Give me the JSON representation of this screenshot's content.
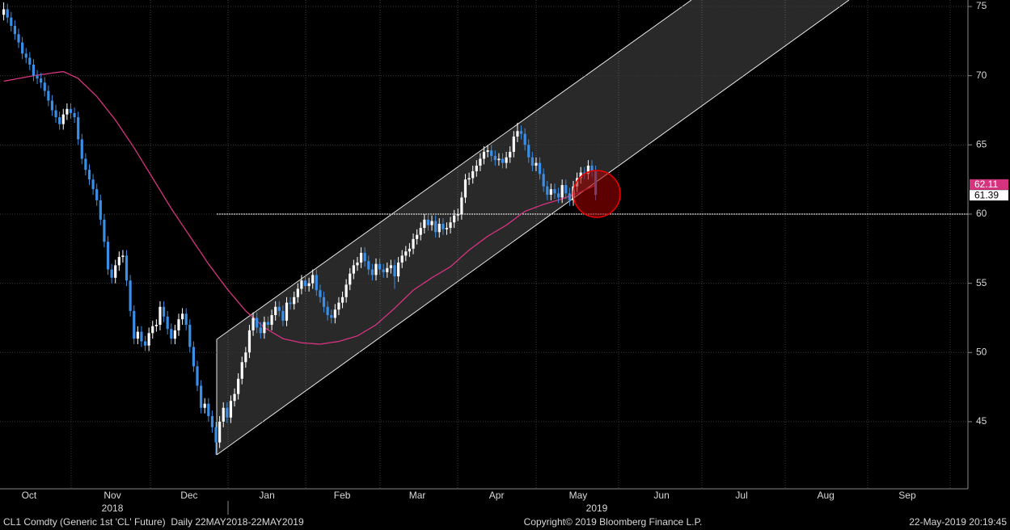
{
  "chart_data": {
    "type": "candlestick",
    "xlim": [
      -1,
      259
    ],
    "xticks": [
      {
        "value": 6.8,
        "label": "Oct"
      },
      {
        "value": 29.2,
        "label": "Nov"
      },
      {
        "value": 49.8,
        "label": "Dec"
      },
      {
        "value": 70.7,
        "label": "Jan"
      },
      {
        "value": 90.9,
        "label": "Feb"
      },
      {
        "value": 111.1,
        "label": "Mar"
      },
      {
        "value": 132.4,
        "label": "Apr"
      },
      {
        "value": 154.3,
        "label": "May"
      },
      {
        "value": 176.7,
        "label": "Jun"
      },
      {
        "value": 198.2,
        "label": "Jul"
      },
      {
        "value": 220.8,
        "label": "Aug"
      },
      {
        "value": 242.7,
        "label": "Sep"
      }
    ],
    "year_ticks": [
      {
        "value": 29.2,
        "label": "2018"
      },
      {
        "value": 159.3,
        "label": "2019"
      }
    ],
    "ylim": [
      40.15,
      75.47
    ],
    "yticks": [
      45,
      50,
      55,
      60,
      65,
      70,
      75
    ],
    "grid": true,
    "up_color": "#ffffff",
    "down_color": "#3a8ee6",
    "open": [
      74.4,
      74.8,
      74.2,
      73.6,
      73.0,
      72.4,
      71.6,
      71.3,
      70.8,
      70.0,
      69.8,
      69.5,
      68.9,
      68.2,
      67.5,
      67.0,
      66.5,
      67.2,
      67.6,
      67.3,
      67.0,
      65.4,
      64.0,
      63.2,
      62.5,
      61.8,
      61.0,
      59.6,
      58.0,
      56.0,
      55.4,
      56.3,
      56.9,
      57.0,
      55.2,
      53.0,
      51.0,
      51.5,
      50.8,
      50.5,
      51.4,
      51.9,
      52.0,
      53.3,
      52.6,
      51.7,
      51.0,
      51.6,
      52.4,
      52.8,
      52.0,
      50.4,
      49.0,
      47.6,
      46.0,
      46.3,
      45.4,
      44.6,
      43.5,
      45.0,
      46.0,
      45.3,
      46.5,
      47.0,
      48.1,
      49.3,
      50.0,
      51.6,
      52.5,
      51.8,
      51.4,
      52.2,
      52.0,
      52.7,
      53.3,
      53.0,
      52.3,
      53.6,
      53.5,
      54.0,
      54.6,
      55.2,
      54.8,
      55.0,
      55.6,
      54.5,
      54.0,
      53.3,
      52.7,
      52.5,
      53.1,
      53.6,
      54.0,
      54.9,
      55.7,
      56.3,
      56.5,
      57.2,
      56.6,
      56.0,
      55.6,
      56.4,
      56.0,
      55.8,
      56.1,
      56.3,
      55.5,
      56.5,
      57.0,
      57.3,
      57.5,
      58.2,
      58.5,
      59.0,
      59.6,
      59.2,
      59.5,
      58.7,
      59.3,
      58.9,
      59.0,
      59.4,
      59.9,
      60.0,
      61.2,
      62.5,
      62.6,
      63.1,
      63.5,
      64.0,
      64.5,
      64.6,
      64.2,
      63.9,
      64.0,
      63.7,
      64.1,
      64.5,
      65.6,
      66.0,
      65.8,
      65.0,
      64.1,
      63.5,
      63.7,
      62.9,
      62.0,
      61.4,
      61.8,
      61.5,
      61.2,
      62.1,
      61.5,
      61.0,
      62.0,
      62.6,
      63.0,
      62.9,
      63.5,
      63.1
    ],
    "high": [
      75.3,
      75.2,
      74.6,
      74.0,
      73.4,
      72.8,
      72.0,
      71.7,
      71.2,
      70.4,
      70.2,
      69.9,
      69.3,
      68.6,
      67.9,
      67.4,
      67.6,
      68.0,
      68.0,
      67.7,
      67.4,
      65.8,
      64.4,
      63.6,
      62.9,
      62.2,
      61.4,
      60.0,
      58.4,
      56.4,
      56.7,
      57.3,
      57.4,
      57.4,
      55.6,
      53.4,
      51.9,
      51.9,
      51.2,
      51.8,
      52.3,
      52.4,
      53.7,
      53.7,
      53.0,
      52.1,
      52.0,
      52.8,
      53.2,
      53.2,
      52.4,
      50.8,
      49.4,
      48.0,
      46.7,
      46.7,
      45.8,
      45.0,
      45.4,
      46.4,
      46.4,
      46.9,
      47.4,
      48.5,
      49.7,
      50.4,
      52.0,
      52.9,
      52.9,
      52.2,
      52.6,
      52.6,
      53.1,
      53.7,
      53.7,
      53.4,
      54.0,
      54.0,
      54.4,
      55.0,
      55.6,
      55.6,
      55.4,
      56.0,
      56.0,
      54.9,
      54.4,
      53.7,
      53.1,
      53.5,
      54.0,
      54.4,
      55.3,
      56.1,
      56.7,
      56.9,
      57.6,
      57.6,
      57.0,
      56.4,
      56.8,
      56.8,
      56.4,
      56.5,
      56.7,
      56.7,
      56.9,
      57.4,
      57.7,
      57.9,
      58.6,
      58.9,
      59.4,
      60.0,
      60.0,
      59.9,
      59.9,
      59.7,
      59.7,
      59.4,
      59.8,
      60.3,
      60.4,
      61.6,
      62.9,
      63.0,
      63.5,
      63.9,
      64.4,
      64.9,
      65.0,
      65.0,
      64.6,
      64.4,
      64.4,
      64.5,
      64.9,
      66.0,
      66.6,
      66.4,
      66.2,
      65.4,
      64.5,
      64.1,
      64.1,
      63.3,
      62.4,
      62.2,
      62.2,
      61.9,
      62.5,
      62.5,
      61.9,
      62.4,
      63.0,
      63.4,
      63.4,
      63.9,
      63.9,
      63.5
    ],
    "low": [
      74.0,
      73.8,
      73.2,
      72.6,
      72.0,
      71.2,
      70.9,
      70.4,
      69.6,
      69.4,
      69.1,
      68.5,
      67.8,
      67.1,
      66.6,
      66.1,
      66.1,
      66.8,
      66.9,
      66.6,
      65.0,
      63.6,
      62.8,
      62.1,
      61.4,
      60.6,
      59.2,
      57.6,
      55.6,
      55.0,
      55.0,
      55.9,
      56.5,
      54.8,
      52.6,
      50.6,
      50.6,
      50.4,
      50.1,
      50.1,
      51.0,
      51.5,
      51.6,
      52.2,
      51.3,
      50.6,
      50.6,
      51.2,
      52.0,
      51.6,
      50.0,
      48.6,
      47.2,
      45.6,
      45.6,
      45.0,
      44.2,
      42.6,
      43.1,
      44.6,
      44.9,
      44.9,
      46.1,
      46.6,
      47.7,
      48.9,
      49.6,
      51.2,
      51.4,
      51.0,
      51.0,
      51.6,
      51.6,
      52.3,
      52.6,
      51.9,
      51.9,
      53.1,
      53.1,
      53.6,
      54.2,
      54.4,
      54.4,
      54.6,
      54.1,
      53.6,
      52.9,
      52.3,
      52.1,
      52.1,
      52.7,
      53.2,
      53.6,
      54.5,
      55.3,
      55.9,
      56.1,
      56.2,
      55.6,
      55.2,
      55.2,
      55.6,
      55.4,
      55.4,
      55.7,
      54.6,
      55.1,
      56.1,
      56.6,
      56.9,
      57.1,
      57.8,
      58.1,
      58.6,
      58.8,
      58.8,
      58.3,
      58.3,
      58.5,
      58.5,
      58.6,
      59.0,
      59.5,
      59.6,
      60.8,
      62.1,
      62.2,
      62.7,
      63.1,
      63.6,
      64.1,
      63.8,
      63.5,
      63.5,
      63.3,
      63.3,
      63.7,
      64.1,
      65.2,
      65.4,
      64.6,
      63.7,
      63.1,
      63.1,
      62.5,
      61.6,
      61.0,
      61.0,
      61.1,
      60.8,
      60.8,
      61.1,
      60.6,
      60.6,
      61.6,
      62.2,
      62.5,
      62.5,
      62.7,
      61.0
    ],
    "close": [
      74.8,
      74.2,
      73.6,
      73.0,
      72.4,
      71.6,
      71.3,
      70.8,
      70.0,
      69.8,
      69.5,
      68.9,
      68.2,
      67.5,
      67.0,
      66.5,
      67.2,
      67.6,
      67.3,
      67.0,
      65.4,
      64.0,
      63.2,
      62.5,
      61.8,
      61.0,
      59.6,
      58.0,
      56.0,
      55.4,
      56.3,
      56.9,
      57.0,
      55.2,
      53.0,
      51.0,
      51.5,
      50.8,
      50.5,
      51.4,
      51.9,
      52.0,
      53.3,
      52.6,
      51.7,
      51.0,
      51.6,
      52.4,
      52.8,
      52.0,
      50.4,
      49.0,
      47.6,
      46.0,
      46.3,
      45.4,
      44.6,
      43.5,
      45.0,
      46.0,
      45.3,
      46.5,
      47.0,
      48.1,
      49.3,
      50.0,
      51.6,
      52.5,
      51.8,
      51.4,
      52.2,
      52.0,
      52.7,
      53.3,
      53.0,
      52.3,
      53.6,
      53.5,
      54.0,
      54.6,
      55.2,
      54.8,
      55.0,
      55.6,
      54.5,
      54.0,
      53.3,
      52.7,
      52.5,
      53.1,
      53.6,
      54.0,
      54.9,
      55.7,
      56.3,
      56.5,
      57.2,
      56.6,
      56.0,
      55.6,
      56.4,
      56.0,
      55.8,
      56.1,
      56.3,
      55.5,
      56.5,
      57.0,
      57.3,
      57.5,
      58.2,
      58.5,
      59.0,
      59.6,
      59.2,
      59.5,
      58.7,
      59.3,
      58.9,
      59.0,
      59.4,
      59.9,
      60.0,
      61.2,
      62.5,
      62.6,
      63.1,
      63.5,
      64.0,
      64.5,
      64.6,
      64.2,
      63.9,
      64.0,
      63.7,
      64.1,
      64.5,
      65.6,
      66.0,
      65.8,
      65.0,
      64.1,
      63.5,
      63.7,
      62.9,
      62.0,
      61.4,
      61.8,
      61.5,
      61.2,
      62.1,
      61.5,
      61.0,
      62.0,
      62.6,
      63.0,
      62.9,
      63.5,
      63.1,
      61.39
    ],
    "moving_average": {
      "color": "#d6337f",
      "values": [
        69.6,
        69.65,
        69.7,
        69.75,
        69.8,
        69.85,
        69.9,
        69.95,
        70.0,
        70.04,
        70.08,
        70.11,
        70.15,
        70.19,
        70.23,
        70.26,
        70.3,
        70.18,
        70.05,
        69.93,
        69.8,
        69.54,
        69.28,
        69.02,
        68.76,
        68.5,
        68.16,
        67.82,
        67.48,
        67.14,
        66.8,
        66.4,
        66.0,
        65.6,
        65.2,
        64.8,
        64.36,
        63.92,
        63.48,
        63.04,
        62.6,
        62.16,
        61.72,
        61.28,
        60.84,
        60.4,
        60.0,
        59.6,
        59.2,
        58.8,
        58.4,
        58.0,
        57.6,
        57.2,
        56.8,
        56.4,
        56.04,
        55.68,
        55.32,
        54.96,
        54.6,
        54.28,
        53.96,
        53.64,
        53.32,
        53.0,
        52.76,
        52.52,
        52.28,
        52.04,
        51.8,
        51.64,
        51.48,
        51.32,
        51.16,
        51.0,
        50.94,
        50.88,
        50.82,
        50.76,
        50.7,
        50.68,
        50.66,
        50.64,
        50.62,
        50.6,
        50.64,
        50.68,
        50.72,
        50.76,
        50.8,
        50.88,
        50.96,
        51.04,
        51.12,
        51.2,
        51.36,
        51.52,
        51.68,
        51.84,
        52.0,
        52.24,
        52.48,
        52.72,
        52.96,
        53.2,
        53.46,
        53.72,
        53.98,
        54.24,
        54.5,
        54.68,
        54.86,
        55.04,
        55.22,
        55.4,
        55.56,
        55.72,
        55.88,
        56.04,
        56.2,
        56.44,
        56.68,
        56.92,
        57.16,
        57.4,
        57.6,
        57.8,
        58.0,
        58.2,
        58.4,
        58.56,
        58.72,
        58.88,
        59.04,
        59.2,
        59.4,
        59.6,
        59.8,
        60.0,
        60.2,
        60.3,
        60.4,
        60.5,
        60.6,
        60.7,
        60.78,
        60.86,
        60.94,
        61.02,
        61.1,
        61.2,
        61.3,
        61.4,
        61.5,
        61.6,
        61.73,
        61.86,
        61.98,
        62.11
      ]
    },
    "footer": {
      "left": "CL1 Comdty (Generic 1st 'CL' Future)  Daily 22MAY2018-22MAY2019",
      "center": "Copyright© 2019 Bloomberg Finance L.P.",
      "right": "22-May-2019 20:19:45"
    }
  }
}
